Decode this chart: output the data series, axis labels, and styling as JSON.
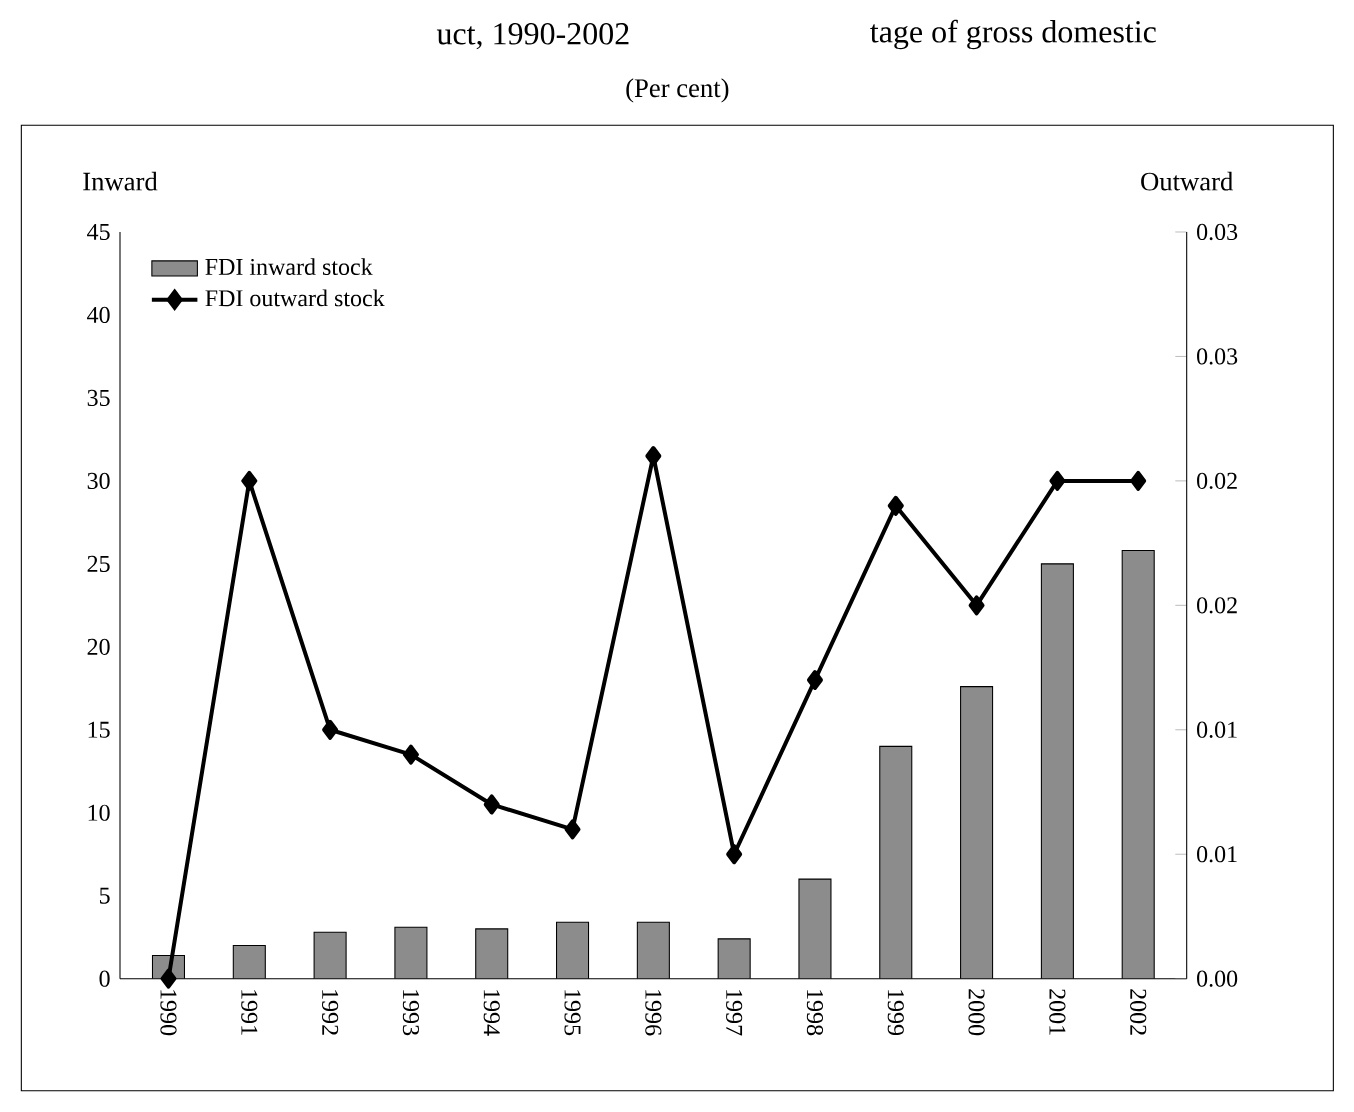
{
  "chart_data": {
    "type": "bar",
    "title": "tage of gross domestic",
    "subtitle": "uct, 1990-2002",
    "annotations": [
      "(Per cent)"
    ],
    "ylabel": "Inward",
    "y2label": "Outward",
    "categories": [
      "1990",
      "1991",
      "1992",
      "1993",
      "1994",
      "1995",
      "1996",
      "1997",
      "1998",
      "1999",
      "2000",
      "2001",
      "2002"
    ],
    "series": [
      {
        "name": "FDI inward stock",
        "color": "#8c8c8c",
        "values": [
          1.4,
          2,
          2.8,
          3.1,
          3,
          3.4,
          3.4,
          2.4,
          6,
          14,
          17.6,
          25,
          25.8
        ]
      },
      {
        "name": "FDI outward stock",
        "type": "line",
        "axis": "y2",
        "color": "#000000",
        "marker": "diamond",
        "values": [
          0,
          0.02,
          0.01,
          0.009,
          0.007,
          0.006,
          0.021,
          0.005,
          0.012,
          0.019,
          0.015,
          0.02,
          0.02
        ]
      }
    ],
    "ylim": [
      0,
      45
    ],
    "yticks": [
      0,
      5,
      10,
      15,
      20,
      25,
      30,
      35,
      40,
      45
    ],
    "y2lim": [
      0,
      0.03
    ],
    "y2ticks": [
      {
        "value": 0,
        "label": "0.00"
      },
      {
        "value": 0.005,
        "label": "0.01"
      },
      {
        "value": 0.01,
        "label": "0.01"
      },
      {
        "value": 0.015,
        "label": "0.02"
      },
      {
        "value": 0.02,
        "label": "0.02"
      },
      {
        "value": 0.025,
        "label": "0.03"
      },
      {
        "value": 0.03,
        "label": "0.03"
      }
    ],
    "legend": "top left",
    "grid": false
  }
}
